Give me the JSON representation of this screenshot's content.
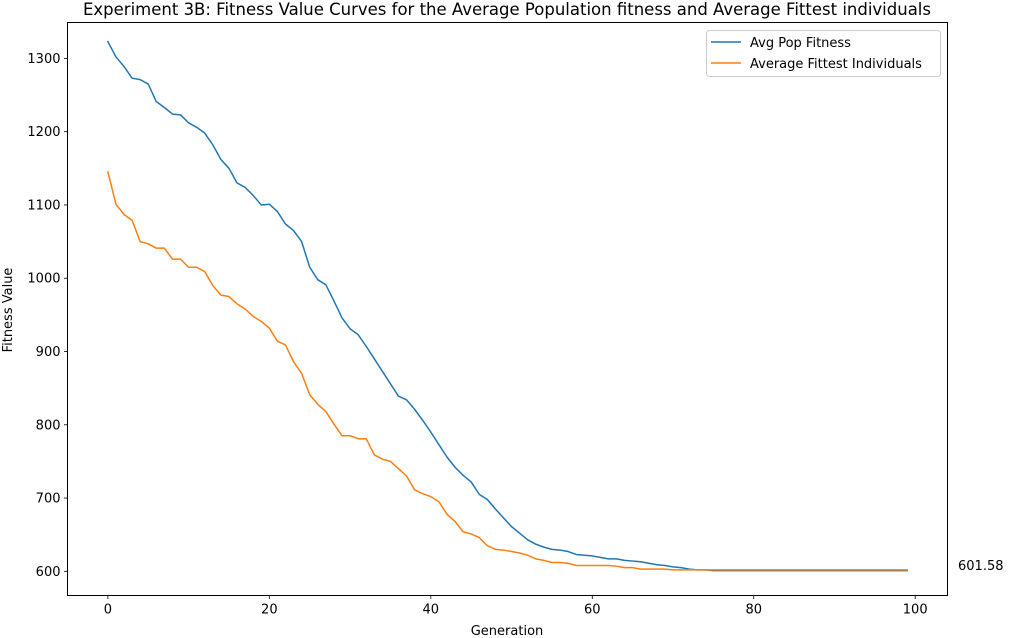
{
  "chart_data": {
    "type": "line",
    "title": "Experiment 3B: Fitness Value Curves for the Average Population fitness and Average Fittest individuals",
    "xlabel": "Generation",
    "ylabel": "Fitness Value",
    "xlim": [
      -5,
      104
    ],
    "ylim": [
      567,
      1349
    ],
    "xticks": [
      0,
      20,
      40,
      60,
      80,
      100
    ],
    "yticks": [
      600,
      700,
      800,
      900,
      1000,
      1100,
      1200,
      1300
    ],
    "grid": false,
    "legend_position": "top-right",
    "annotation": "601.58",
    "series": [
      {
        "name": "Avg Pop Fitness",
        "color": "#1f77b4",
        "x": [
          0,
          1,
          2,
          3,
          4,
          5,
          6,
          7,
          8,
          9,
          10,
          11,
          12,
          13,
          14,
          15,
          16,
          17,
          18,
          19,
          20,
          21,
          22,
          23,
          24,
          25,
          26,
          27,
          28,
          29,
          30,
          31,
          32,
          33,
          34,
          35,
          36,
          37,
          38,
          39,
          40,
          41,
          42,
          43,
          44,
          45,
          46,
          47,
          48,
          49,
          50,
          51,
          52,
          53,
          54,
          55,
          56,
          57,
          58,
          59,
          60,
          61,
          62,
          63,
          64,
          65,
          66,
          67,
          68,
          69,
          70,
          71,
          72,
          73,
          74,
          75,
          76,
          77,
          78,
          79,
          80,
          81,
          82,
          83,
          84,
          85,
          86,
          87,
          88,
          89,
          90,
          91,
          92,
          93,
          94,
          95,
          96,
          97,
          98,
          99
        ],
        "y": [
          1323,
          1302,
          1289,
          1273,
          1271,
          1265,
          1241,
          1233,
          1224,
          1223,
          1212,
          1206,
          1198,
          1182,
          1162,
          1150,
          1130,
          1124,
          1113,
          1100,
          1101,
          1091,
          1074,
          1065,
          1050,
          1015,
          998,
          991,
          969,
          946,
          931,
          923,
          907,
          890,
          873,
          856,
          839,
          834,
          821,
          806,
          790,
          773,
          756,
          742,
          731,
          722,
          705,
          698,
          685,
          673,
          661,
          652,
          643,
          637,
          633,
          630,
          629,
          627,
          623,
          622,
          621,
          619,
          617,
          617,
          615,
          614,
          613,
          611,
          609,
          608,
          606,
          605,
          603,
          602,
          602,
          601,
          601,
          601,
          601,
          601,
          601,
          601,
          601,
          601,
          601,
          601,
          601,
          601,
          601,
          601,
          601,
          601,
          601,
          601,
          601,
          601,
          601,
          601,
          601,
          601
        ]
      },
      {
        "name": "Average Fittest Individuals",
        "color": "#ff7f0e",
        "x": [
          0,
          1,
          2,
          3,
          4,
          5,
          6,
          7,
          8,
          9,
          10,
          11,
          12,
          13,
          14,
          15,
          16,
          17,
          18,
          19,
          20,
          21,
          22,
          23,
          24,
          25,
          26,
          27,
          28,
          29,
          30,
          31,
          32,
          33,
          34,
          35,
          36,
          37,
          38,
          39,
          40,
          41,
          42,
          43,
          44,
          45,
          46,
          47,
          48,
          49,
          50,
          51,
          52,
          53,
          54,
          55,
          56,
          57,
          58,
          59,
          60,
          61,
          62,
          63,
          64,
          65,
          66,
          67,
          68,
          69,
          70,
          71,
          72,
          73,
          74,
          75,
          76,
          77,
          78,
          79,
          80,
          81,
          82,
          83,
          84,
          85,
          86,
          87,
          88,
          89,
          90,
          91,
          92,
          93,
          94,
          95,
          96,
          97,
          98,
          99
        ],
        "y": [
          1145,
          1101,
          1087,
          1079,
          1050,
          1047,
          1041,
          1041,
          1026,
          1026,
          1015,
          1015,
          1009,
          990,
          977,
          975,
          965,
          958,
          948,
          941,
          932,
          914,
          909,
          886,
          870,
          841,
          828,
          818,
          801,
          785,
          785,
          781,
          781,
          759,
          753,
          750,
          740,
          730,
          711,
          706,
          702,
          695,
          678,
          668,
          654,
          651,
          646,
          635,
          630,
          629,
          627,
          625,
          622,
          617,
          615,
          612,
          612,
          611,
          608,
          608,
          608,
          608,
          608,
          607,
          605,
          605,
          603,
          603,
          603,
          603,
          602,
          602,
          602,
          602,
          602,
          602,
          602,
          602,
          602,
          602,
          602,
          602,
          602,
          602,
          602,
          602,
          602,
          602,
          602,
          602,
          602,
          602,
          602,
          602,
          602,
          602,
          602,
          602,
          602,
          602
        ]
      }
    ]
  }
}
